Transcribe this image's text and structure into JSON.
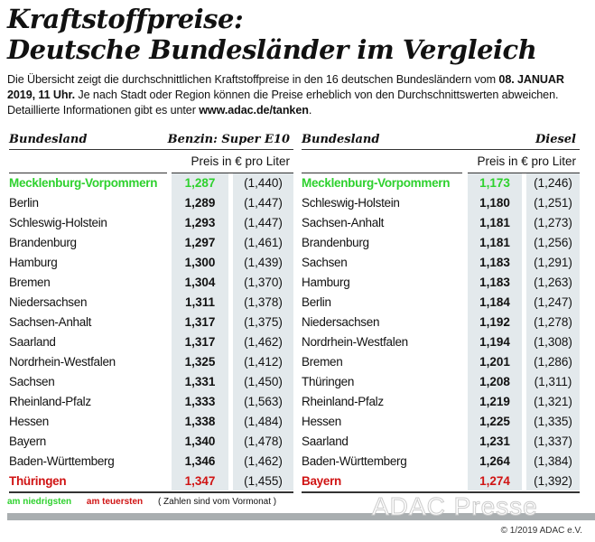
{
  "title": {
    "line1": "Kraftstoffpreise:",
    "line2": "Deutsche Bundesländer im Vergleich"
  },
  "intro": {
    "part1": "Die Übersicht zeigt die durchschnittlichen Kraftstoffpreise in den 16 deutschen Bundesländern vom ",
    "date": "08. JANUAR 2019, 11 Uhr.",
    "part2": " Je nach Stadt oder Region können die Preise erheblich von den Durchschnittswerten abweichen. Detaillierte Informationen gibt es unter ",
    "link": "www.adac.de/tanken",
    "part3": "."
  },
  "tables": [
    {
      "col_name": "Bundesland",
      "col_fuel": "Benzin:  Super E10",
      "unit": "Preis in € pro Liter",
      "rows": [
        {
          "name": "Mecklenburg-Vorpommern",
          "price": "1,287",
          "prev": "(1,440)",
          "mark": "low"
        },
        {
          "name": "Berlin",
          "price": "1,289",
          "prev": "(1,447)"
        },
        {
          "name": "Schleswig-Holstein",
          "price": "1,293",
          "prev": "(1,447)"
        },
        {
          "name": "Brandenburg",
          "price": "1,297",
          "prev": "(1,461)"
        },
        {
          "name": "Hamburg",
          "price": "1,300",
          "prev": "(1,439)"
        },
        {
          "name": "Bremen",
          "price": "1,304",
          "prev": "(1,370)"
        },
        {
          "name": "Niedersachsen",
          "price": "1,311",
          "prev": "(1,378)"
        },
        {
          "name": "Sachsen-Anhalt",
          "price": "1,317",
          "prev": "(1,375)"
        },
        {
          "name": "Saarland",
          "price": "1,317",
          "prev": "(1,462)"
        },
        {
          "name": "Nordrhein-Westfalen",
          "price": "1,325",
          "prev": "(1,412)"
        },
        {
          "name": "Sachsen",
          "price": "1,331",
          "prev": "(1,450)"
        },
        {
          "name": "Rheinland-Pfalz",
          "price": "1,333",
          "prev": "(1,563)"
        },
        {
          "name": "Hessen",
          "price": "1,338",
          "prev": "(1,484)"
        },
        {
          "name": "Bayern",
          "price": "1,340",
          "prev": "(1,478)"
        },
        {
          "name": "Baden-Württemberg",
          "price": "1,346",
          "prev": "(1,462)"
        },
        {
          "name": "Thüringen",
          "price": "1,347",
          "prev": "(1,455)",
          "mark": "high"
        }
      ]
    },
    {
      "col_name": "Bundesland",
      "col_fuel": "Diesel",
      "unit": "Preis in € pro Liter",
      "rows": [
        {
          "name": "Mecklenburg-Vorpommern",
          "price": "1,173",
          "prev": "(1,246)",
          "mark": "low"
        },
        {
          "name": "Schleswig-Holstein",
          "price": "1,180",
          "prev": "(1,251)"
        },
        {
          "name": "Sachsen-Anhalt",
          "price": "1,181",
          "prev": "(1,273)"
        },
        {
          "name": "Brandenburg",
          "price": "1,181",
          "prev": "(1,256)"
        },
        {
          "name": "Sachsen",
          "price": "1,183",
          "prev": "(1,291)"
        },
        {
          "name": "Hamburg",
          "price": "1,183",
          "prev": "(1,263)"
        },
        {
          "name": "Berlin",
          "price": "1,184",
          "prev": "(1,247)"
        },
        {
          "name": "Niedersachsen",
          "price": "1,192",
          "prev": "(1,278)"
        },
        {
          "name": "Nordrhein-Westfalen",
          "price": "1,194",
          "prev": "(1,308)"
        },
        {
          "name": "Bremen",
          "price": "1,201",
          "prev": "(1,286)"
        },
        {
          "name": "Thüringen",
          "price": "1,208",
          "prev": "(1,311)"
        },
        {
          "name": "Rheinland-Pfalz",
          "price": "1,219",
          "prev": "(1,321)"
        },
        {
          "name": "Hessen",
          "price": "1,225",
          "prev": "(1,335)"
        },
        {
          "name": "Saarland",
          "price": "1,231",
          "prev": "(1,337)"
        },
        {
          "name": "Baden-Württemberg",
          "price": "1,264",
          "prev": "(1,384)"
        },
        {
          "name": "Bayern",
          "price": "1,274",
          "prev": "(1,392)",
          "mark": "high"
        }
      ]
    }
  ],
  "legend": {
    "low": "am niedrigsten",
    "high": "am teuersten",
    "note": "( Zahlen sind vom Vormonat )"
  },
  "colors": {
    "low": "#2ed12e",
    "high": "#d01414",
    "column_bg": "#e3e9ec"
  },
  "watermark": "ADAC Presse",
  "copyright": "© 1/2019 ADAC e.V."
}
